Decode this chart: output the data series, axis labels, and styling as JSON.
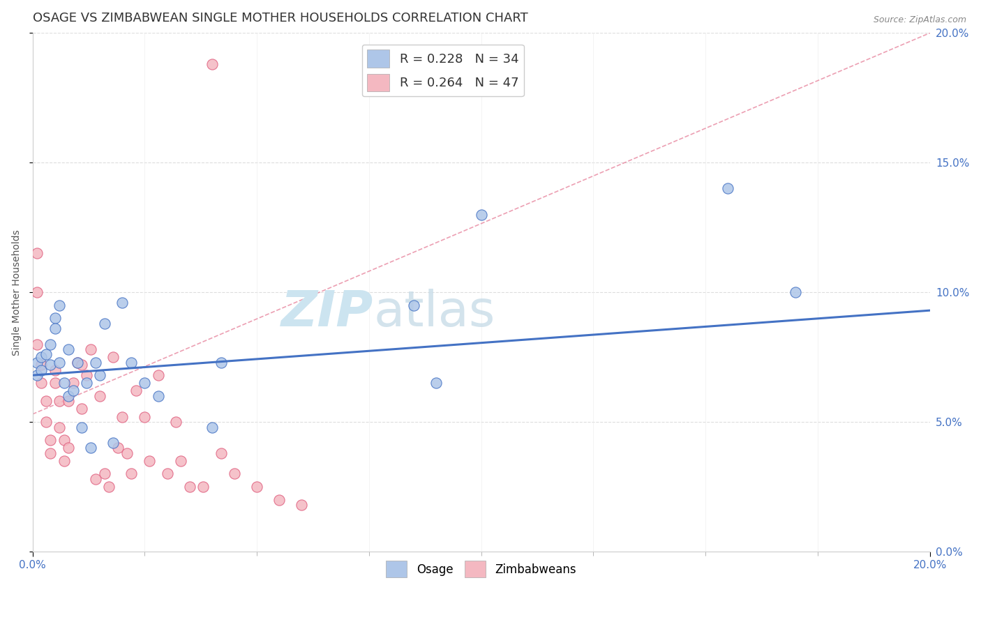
{
  "title": "OSAGE VS ZIMBABWEAN SINGLE MOTHER HOUSEHOLDS CORRELATION CHART",
  "source": "Source: ZipAtlas.com",
  "ylabel": "Single Mother Households",
  "xlim": [
    0,
    0.2
  ],
  "ylim": [
    0,
    0.2
  ],
  "legend_entries": [
    {
      "label_r": "R = 0.228",
      "label_n": "N = 34",
      "color": "#aec6e8"
    },
    {
      "label_r": "R = 0.264",
      "label_n": "N = 47",
      "color": "#f4b8c1"
    }
  ],
  "osage_scatter_x": [
    0.001,
    0.001,
    0.002,
    0.002,
    0.003,
    0.004,
    0.004,
    0.005,
    0.005,
    0.006,
    0.006,
    0.007,
    0.008,
    0.008,
    0.009,
    0.01,
    0.011,
    0.012,
    0.013,
    0.014,
    0.015,
    0.016,
    0.018,
    0.02,
    0.022,
    0.025,
    0.028,
    0.04,
    0.042,
    0.085,
    0.09,
    0.1,
    0.155,
    0.17
  ],
  "osage_scatter_y": [
    0.073,
    0.068,
    0.075,
    0.07,
    0.076,
    0.072,
    0.08,
    0.09,
    0.086,
    0.095,
    0.073,
    0.065,
    0.06,
    0.078,
    0.062,
    0.073,
    0.048,
    0.065,
    0.04,
    0.073,
    0.068,
    0.088,
    0.042,
    0.096,
    0.073,
    0.065,
    0.06,
    0.048,
    0.073,
    0.095,
    0.065,
    0.13,
    0.14,
    0.1
  ],
  "zimbabwean_scatter_x": [
    0.001,
    0.001,
    0.001,
    0.002,
    0.002,
    0.003,
    0.003,
    0.004,
    0.004,
    0.005,
    0.005,
    0.006,
    0.006,
    0.007,
    0.007,
    0.008,
    0.008,
    0.009,
    0.01,
    0.011,
    0.011,
    0.012,
    0.013,
    0.014,
    0.015,
    0.016,
    0.017,
    0.018,
    0.019,
    0.02,
    0.021,
    0.022,
    0.023,
    0.025,
    0.026,
    0.028,
    0.03,
    0.032,
    0.033,
    0.035,
    0.038,
    0.04,
    0.042,
    0.045,
    0.05,
    0.055,
    0.06
  ],
  "zimbabwean_scatter_y": [
    0.115,
    0.1,
    0.08,
    0.072,
    0.065,
    0.058,
    0.05,
    0.043,
    0.038,
    0.07,
    0.065,
    0.058,
    0.048,
    0.043,
    0.035,
    0.058,
    0.04,
    0.065,
    0.073,
    0.072,
    0.055,
    0.068,
    0.078,
    0.028,
    0.06,
    0.03,
    0.025,
    0.075,
    0.04,
    0.052,
    0.038,
    0.03,
    0.062,
    0.052,
    0.035,
    0.068,
    0.03,
    0.05,
    0.035,
    0.025,
    0.025,
    0.188,
    0.038,
    0.03,
    0.025,
    0.02,
    0.018
  ],
  "osage_line_x": [
    0.0,
    0.2
  ],
  "osage_line_y": [
    0.068,
    0.093
  ],
  "zimbabwean_line_x": [
    0.0,
    0.2
  ],
  "zimbabwean_line_y": [
    0.053,
    0.2
  ],
  "osage_color": "#4472c4",
  "osage_scatter_color": "#aec6e8",
  "zimbabwean_color": "#e06080",
  "zimbabwean_scatter_color": "#f4b8c1",
  "background_color": "#ffffff",
  "grid_color": "#dddddd",
  "watermark_color": "#cce4f0",
  "title_fontsize": 13,
  "axis_label_fontsize": 10,
  "tick_fontsize": 11
}
